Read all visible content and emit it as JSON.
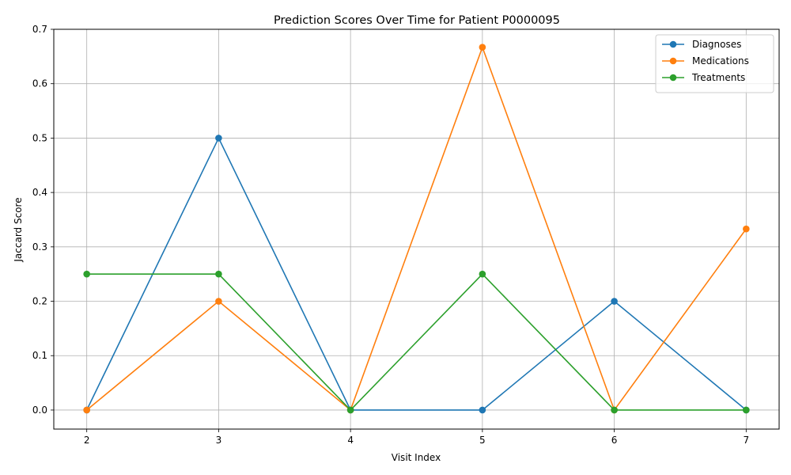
{
  "chart_data": {
    "type": "line",
    "title": "Prediction Scores Over Time for Patient P0000095",
    "xlabel": "Visit Index",
    "ylabel": "Jaccard Score",
    "x": [
      2,
      3,
      4,
      5,
      6,
      7
    ],
    "x_ticks": [
      "2",
      "3",
      "4",
      "5",
      "6",
      "7"
    ],
    "y_ticks": [
      "0.0",
      "0.1",
      "0.2",
      "0.3",
      "0.4",
      "0.5",
      "0.6",
      "0.7"
    ],
    "xlim": [
      1.75,
      7.25
    ],
    "ylim": [
      -0.035,
      0.7
    ],
    "grid": true,
    "legend_position": "top-right",
    "series": [
      {
        "name": "Diagnoses",
        "color": "#1f77b4",
        "values": [
          0.0,
          0.5,
          0.0,
          0.0,
          0.2,
          0.0
        ]
      },
      {
        "name": "Medications",
        "color": "#ff7f0e",
        "values": [
          0.0,
          0.2,
          0.0,
          0.667,
          0.0,
          0.333
        ]
      },
      {
        "name": "Treatments",
        "color": "#2ca02c",
        "values": [
          0.25,
          0.25,
          0.0,
          0.25,
          0.0,
          0.0
        ]
      }
    ]
  }
}
